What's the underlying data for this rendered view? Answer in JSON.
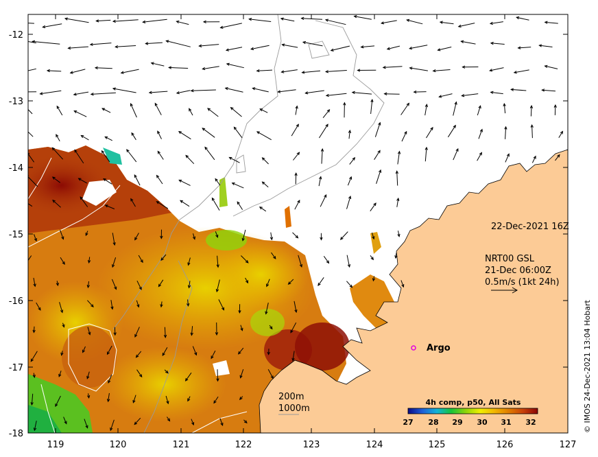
{
  "annotations": {
    "timestamp": "22-Dec-2021 16Z",
    "current_source": "NRT00 GSL",
    "current_time": "21-Dec 06:00Z",
    "scale_vector_label": "0.5m/s (1kt 24h)",
    "argo_label": "Argo",
    "contour_200": "200m",
    "contour_1000": "1000m",
    "credit": "© IMOS 24-Dec-2021 13:04 Hobart"
  },
  "colorbar": {
    "title": "4h comp, p50, All Sats",
    "ticks": [
      "27",
      "28",
      "29",
      "30",
      "31",
      "32"
    ],
    "stops": [
      "#0b0b86",
      "#1f5fd8",
      "#12b4d8",
      "#18c43a",
      "#8ed40b",
      "#f0f000",
      "#f2b600",
      "#e07c00",
      "#c8400a",
      "#8a0606"
    ]
  },
  "axes": {
    "x_ticks": [
      "119",
      "120",
      "121",
      "122",
      "123",
      "124",
      "125",
      "126",
      "127"
    ],
    "y_ticks": [
      "-12",
      "-13",
      "-14",
      "-15",
      "-16",
      "-17",
      "-18"
    ]
  },
  "colors": {
    "land": "#fccb96",
    "coast": "#000000",
    "bathy_200": "#9a9a9a",
    "bathy_1000": "#ffffff",
    "argo": "#e000e0"
  }
}
